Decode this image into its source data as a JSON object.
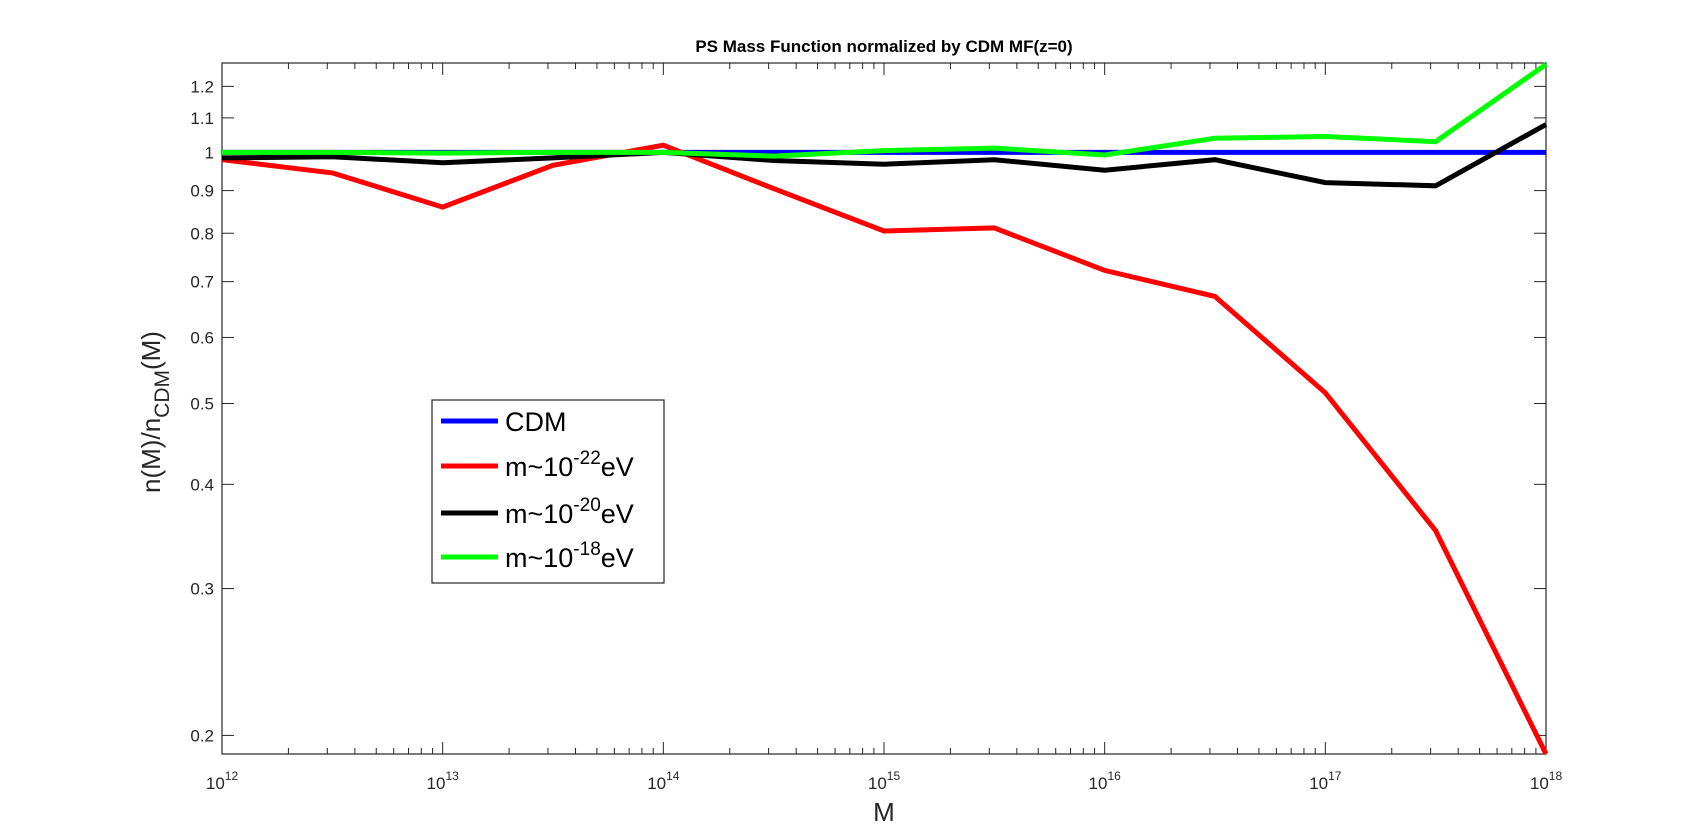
{
  "chart_data": {
    "type": "line",
    "title": "PS Mass Function normalized by CDM MF(z=0)",
    "xlabel": "M",
    "ylabel": {
      "base": "n(M)/n",
      "sub": "CDM",
      "tail": "(M)"
    },
    "xscale": "log",
    "yscale": "log",
    "xlim": [
      1000000000000.0,
      1e+18
    ],
    "ylim": [
      0.19,
      1.28
    ],
    "grid": false,
    "legend_position": "center-left",
    "x_ticks": [
      {
        "base": "10",
        "exp": "12"
      },
      {
        "base": "10",
        "exp": "13"
      },
      {
        "base": "10",
        "exp": "14"
      },
      {
        "base": "10",
        "exp": "15"
      },
      {
        "base": "10",
        "exp": "16"
      },
      {
        "base": "10",
        "exp": "17"
      },
      {
        "base": "10",
        "exp": "18"
      }
    ],
    "y_ticks": [
      "0.2",
      "0.3",
      "0.4",
      "0.5",
      "0.6",
      "0.7",
      "0.8",
      "0.9",
      "1",
      "1.1",
      "1.2"
    ],
    "x": [
      1000000000000.0,
      3160000000000.0,
      10000000000000.0,
      31600000000000.0,
      100000000000000.0,
      316000000000000.0,
      1000000000000000.0,
      3160000000000000.0,
      1e+16,
      3.16e+16,
      1e+17,
      3.16e+17,
      1e+18
    ],
    "series": [
      {
        "name": "CDM",
        "legend_pre": "CDM",
        "legend_exp": "",
        "legend_post": "",
        "color": "#0000ff",
        "values": [
          1,
          1,
          1,
          1,
          1,
          1,
          1,
          1,
          1,
          1,
          1,
          1,
          1
        ]
      },
      {
        "name": "m~10^-22 eV",
        "legend_pre": "m~10",
        "legend_exp": "-22",
        "legend_post": "eV",
        "color": "#ff0000",
        "values": [
          0.98,
          0.945,
          0.86,
          0.965,
          1.02,
          0.905,
          0.805,
          0.812,
          0.722,
          0.672,
          0.515,
          0.352,
          0.19
        ]
      },
      {
        "name": "m~10^-20 eV",
        "legend_pre": "m~10",
        "legend_exp": "-20",
        "legend_post": "eV",
        "color": "#000000",
        "values": [
          0.985,
          0.988,
          0.972,
          0.985,
          1,
          0.978,
          0.968,
          0.98,
          0.952,
          0.98,
          0.92,
          0.912,
          1.08
        ]
      },
      {
        "name": "m~10^-18 eV",
        "legend_pre": "m~10",
        "legend_exp": "-18",
        "legend_post": "eV",
        "color": "#00ff00",
        "values": [
          1,
          1,
          0.998,
          1,
          1,
          0.99,
          1.005,
          1.012,
          0.993,
          1.04,
          1.045,
          1.03,
          1.275
        ]
      }
    ]
  }
}
